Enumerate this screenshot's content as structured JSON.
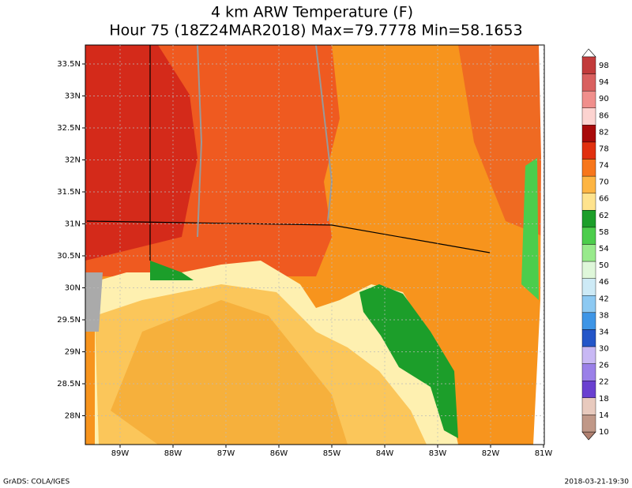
{
  "title": [
    "4 km ARW Temperature (F)",
    "Hour 75 (18Z24MAR2018) Max=79.7778 Min=58.1653"
  ],
  "lon_labels": [
    "89W",
    "88W",
    "87W",
    "86W",
    "85W",
    "84W",
    "83W",
    "82W",
    "81W"
  ],
  "lat_labels": [
    "33.5N",
    "33N",
    "32.5N",
    "32N",
    "31.5N",
    "31N",
    "30.5N",
    "30N",
    "29.5N",
    "29N",
    "28.5N",
    "28N"
  ],
  "colorbar": {
    "labels": [
      98,
      94,
      90,
      86,
      82,
      78,
      74,
      70,
      66,
      62,
      58,
      54,
      50,
      46,
      42,
      38,
      34,
      30,
      26,
      22,
      18,
      14,
      10
    ],
    "colors": [
      "#c23b3b",
      "#d9605f",
      "#f08f8c",
      "#fcd3d0",
      "#a80a0a",
      "#e1300f",
      "#f7761b",
      "#fdb543",
      "#fee38e",
      "#1c9e2a",
      "#4ccd4c",
      "#98ea8c",
      "#dff7da",
      "#cdeaf6",
      "#8dc9f2",
      "#3e95e6",
      "#2456c8",
      "#c8b8f4",
      "#9a80e8",
      "#6a40d0",
      "#e8cabe",
      "#c09888"
    ]
  },
  "footer_left": "GrADS: COLA/IGES",
  "footer_right": "2018-03-21-19:30"
}
